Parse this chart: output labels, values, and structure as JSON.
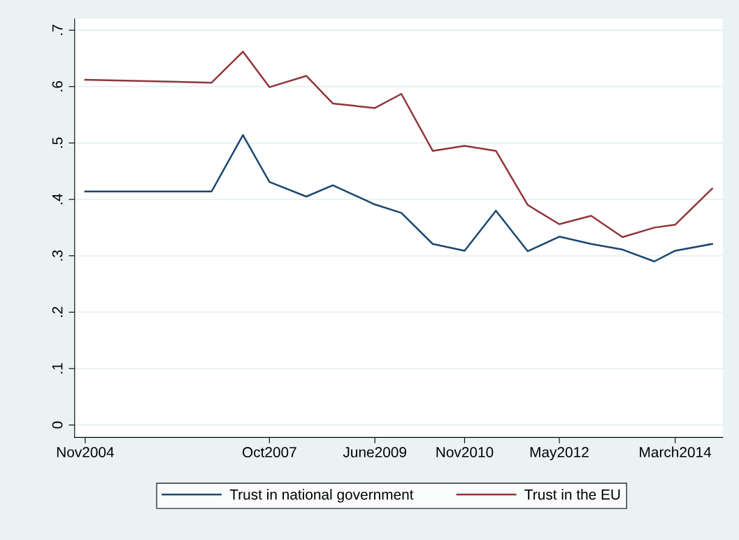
{
  "chart_data": {
    "type": "line",
    "x": [
      "2004-11",
      "2006-11",
      "2007-05",
      "2007-10",
      "2008-05",
      "2008-10",
      "2009-06",
      "2009-11",
      "2010-05",
      "2010-11",
      "2011-05",
      "2011-11",
      "2012-05",
      "2012-11",
      "2013-05",
      "2013-11",
      "2014-03",
      "2014-10"
    ],
    "series": [
      {
        "name": "Trust in national government",
        "color": "#1a476f",
        "values": [
          0.414,
          0.414,
          0.514,
          0.431,
          0.405,
          0.425,
          0.391,
          0.376,
          0.321,
          0.309,
          0.38,
          0.308,
          0.334,
          0.321,
          0.311,
          0.29,
          0.309,
          0.321
        ]
      },
      {
        "name": "Trust in the EU",
        "color": "#90353b",
        "values": [
          0.612,
          0.607,
          0.662,
          0.599,
          0.619,
          0.57,
          0.562,
          0.587,
          0.486,
          0.495,
          0.486,
          0.39,
          0.356,
          0.371,
          0.333,
          0.35,
          0.355,
          0.419
        ]
      }
    ],
    "xlim": [
      "2004-09-01",
      "2014-12-01"
    ],
    "xticks": [
      {
        "value": "2004-11",
        "label": "Nov2004"
      },
      {
        "value": "2007-10",
        "label": "Oct2007"
      },
      {
        "value": "2009-06",
        "label": "June2009"
      },
      {
        "value": "2010-11",
        "label": "Nov2010"
      },
      {
        "value": "2012-05",
        "label": "May2012"
      },
      {
        "value": "2014-03",
        "label": "March2014"
      }
    ],
    "ylim": [
      -0.022,
      0.72
    ],
    "yticks": [
      0,
      {
        "value": 0.1,
        "label": ".1"
      },
      {
        "value": 0.2,
        "label": ".2"
      },
      {
        "value": 0.3,
        "label": ".3"
      },
      {
        "value": 0.4,
        "label": ".4"
      },
      {
        "value": 0.5,
        "label": ".5"
      },
      {
        "value": 0.6,
        "label": ".6"
      },
      {
        "value": 0.7,
        "label": ".7"
      }
    ],
    "grid": "y",
    "legend": "bottom",
    "marker": "none",
    "line_style": "solid"
  }
}
